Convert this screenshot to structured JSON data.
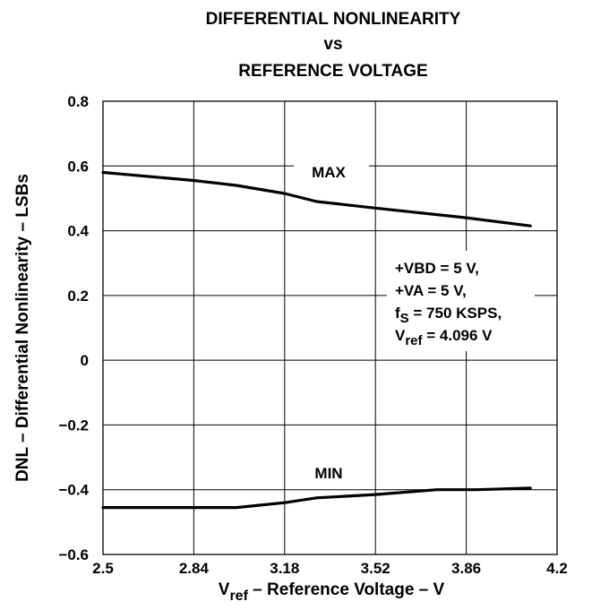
{
  "chart_data": {
    "type": "line",
    "title": {
      "line1": "DIFFERENTIAL NONLINEARITY",
      "line2": "vs",
      "line3": "REFERENCE VOLTAGE"
    },
    "xlabel": {
      "main": "V",
      "sub": "ref",
      "rest": " – Reference Voltage – V"
    },
    "ylabel": "DNL – Differential Nonlinearity – LSBs",
    "xlim": [
      2.5,
      4.2
    ],
    "ylim": [
      -0.6,
      0.8
    ],
    "xticks": [
      2.5,
      2.84,
      3.18,
      3.52,
      3.86,
      4.2
    ],
    "xtick_labels": [
      "2.5",
      "2.84",
      "3.18",
      "3.52",
      "3.86",
      "4.2"
    ],
    "yticks": [
      0.8,
      0.6,
      0.4,
      0.2,
      0,
      -0.2,
      -0.4,
      -0.6
    ],
    "ytick_labels": [
      "0.8",
      "0.6",
      "0.4",
      "0.2",
      "0",
      "−0.2",
      "−0.4",
      "−0.6"
    ],
    "grid": true,
    "series": [
      {
        "name": "MAX",
        "x": [
          2.5,
          2.84,
          3.0,
          3.18,
          3.3,
          3.52,
          3.86,
          4.1
        ],
        "y": [
          0.58,
          0.555,
          0.54,
          0.515,
          0.49,
          0.47,
          0.44,
          0.415
        ]
      },
      {
        "name": "MIN",
        "x": [
          2.5,
          2.84,
          3.0,
          3.18,
          3.3,
          3.52,
          3.75,
          3.9,
          4.1
        ],
        "y": [
          -0.455,
          -0.455,
          -0.455,
          -0.44,
          -0.425,
          -0.415,
          -0.4,
          -0.4,
          -0.395
        ]
      }
    ],
    "annotations": {
      "lines": [
        {
          "main": "+VBD = 5 V,"
        },
        {
          "main": "+VA = 5 V,"
        },
        {
          "main": "f",
          "sub": "S",
          "rest": " = 750 KSPS,"
        },
        {
          "main": "V",
          "sub": "ref",
          "rest": " = 4.096 V"
        }
      ]
    }
  }
}
